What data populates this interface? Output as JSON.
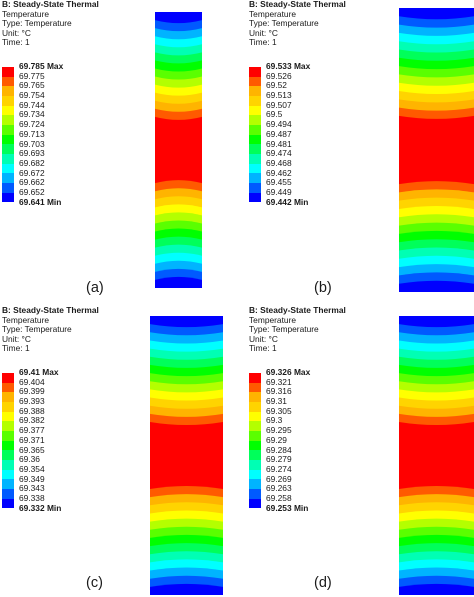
{
  "palette": [
    "#ff0000",
    "#ff5a00",
    "#ffb400",
    "#ffd400",
    "#ffff00",
    "#b4ff00",
    "#5aff00",
    "#00ff00",
    "#00ff5a",
    "#00ffb4",
    "#00ffff",
    "#00b4ff",
    "#005aff",
    "#0000ff"
  ],
  "panels": [
    {
      "title": "B: Steady-State Thermal",
      "quantity": "Temperature",
      "type_line": "Type: Temperature",
      "unit_line": "Unit: °C",
      "time_line": "Time: 1",
      "legend": [
        "69.785 Max",
        "69.775",
        "69.765",
        "69.754",
        "69.744",
        "69.734",
        "69.724",
        "69.713",
        "69.703",
        "69.693",
        "69.682",
        "69.672",
        "69.662",
        "69.652",
        "69.641 Min"
      ],
      "caption": "(a)"
    },
    {
      "title": "B: Steady-State Thermal",
      "quantity": "Temperature",
      "type_line": "Type: Temperature",
      "unit_line": "Unit: °C",
      "time_line": "Time: 1",
      "legend": [
        "69.533 Max",
        "69.526",
        "69.52",
        "69.513",
        "69.507",
        "69.5",
        "69.494",
        "69.487",
        "69.481",
        "69.474",
        "69.468",
        "69.462",
        "69.455",
        "69.449",
        "69.442 Min"
      ],
      "caption": "(b)"
    },
    {
      "title": "B: Steady-State Thermal",
      "quantity": "Temperature",
      "type_line": "Type: Temperature",
      "unit_line": "Unit: °C",
      "time_line": "Time: 1",
      "legend": [
        "69.41 Max",
        "69.404",
        "69.399",
        "69.393",
        "69.388",
        "69.382",
        "69.377",
        "69.371",
        "69.365",
        "69.36",
        "69.354",
        "69.349",
        "69.343",
        "69.338",
        "69.332 Min"
      ],
      "caption": "(c)"
    },
    {
      "title": "B: Steady-State Thermal",
      "quantity": "Temperature",
      "type_line": "Type: Temperature",
      "unit_line": "Unit: °C",
      "time_line": "Time: 1",
      "legend": [
        "69.326 Max",
        "69.321",
        "69.316",
        "69.31",
        "69.305",
        "69.3",
        "69.295",
        "69.29",
        "69.284",
        "69.279",
        "69.274",
        "69.269",
        "69.263",
        "69.258",
        "69.253 Min"
      ],
      "caption": "(d)"
    }
  ]
}
